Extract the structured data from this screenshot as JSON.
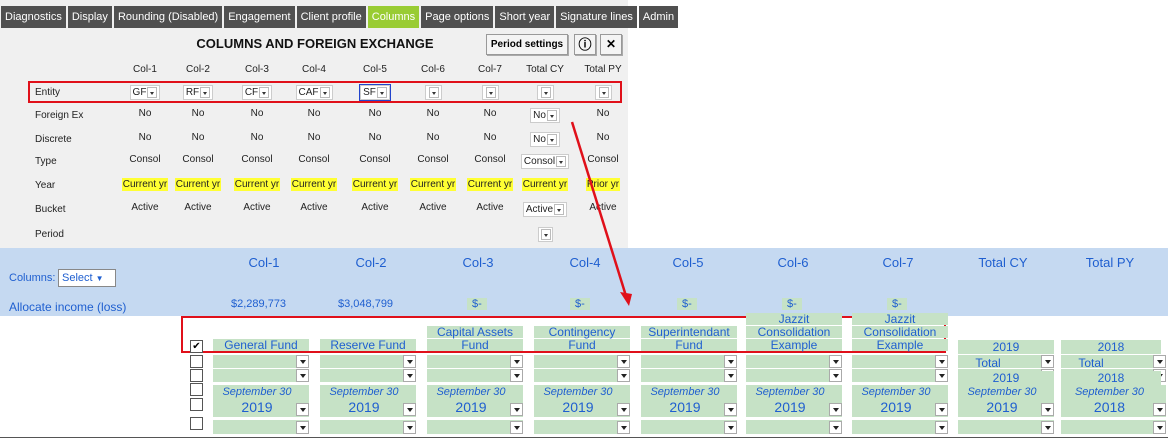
{
  "tabs": [
    "Diagnostics",
    "Display",
    "Rounding (Disabled)",
    "Engagement",
    "Client profile",
    "Columns",
    "Page options",
    "Short year",
    "Signature lines",
    "Admin"
  ],
  "active_tab": "Columns",
  "panel": {
    "title": "COLUMNS AND FOREIGN EXCHANGE",
    "period_settings": "Period settings",
    "info_glyph": "ⓘ",
    "close_glyph": "✕",
    "columns": [
      "Col-1",
      "Col-2",
      "Col-3",
      "Col-4",
      "Col-5",
      "Col-6",
      "Col-7",
      "Total CY",
      "Total PY"
    ],
    "rows": {
      "entity": {
        "label": "Entity",
        "values": [
          "GF",
          "RF",
          "CF",
          "CAF",
          "SF",
          "",
          "",
          "",
          ""
        ]
      },
      "foreign_ex": {
        "label": "Foreign Ex",
        "values": [
          "No",
          "No",
          "No",
          "No",
          "No",
          "No",
          "No",
          "No",
          "No"
        ]
      },
      "discrete": {
        "label": "Discrete",
        "values": [
          "No",
          "No",
          "No",
          "No",
          "No",
          "No",
          "No",
          "No",
          "No"
        ]
      },
      "type": {
        "label": "Type",
        "values": [
          "Consol",
          "Consol",
          "Consol",
          "Consol",
          "Consol",
          "Consol",
          "Consol",
          "Consol",
          "Consol"
        ]
      },
      "year": {
        "label": "Year",
        "values": [
          "Current yr",
          "Current yr",
          "Current yr",
          "Current yr",
          "Current yr",
          "Current yr",
          "Current yr",
          "Current yr",
          "Prior yr"
        ]
      },
      "bucket": {
        "label": "Bucket",
        "values": [
          "Active",
          "Active",
          "Active",
          "Active",
          "Active",
          "Active",
          "Active",
          "Active",
          "Active"
        ]
      },
      "period": {
        "label": "Period",
        "values": [
          "",
          "",
          "",
          "",
          "",
          "",
          "",
          "",
          ""
        ]
      }
    }
  },
  "band": {
    "columns_label": "Columns:",
    "select_label": "Select",
    "allocate_label": "Allocate income (loss)",
    "headers": [
      "Col-1",
      "Col-2",
      "Col-3",
      "Col-4",
      "Col-5",
      "Col-6",
      "Col-7",
      "Total CY",
      "Total PY"
    ],
    "amounts": [
      "$2,289,773",
      "$3,048,799",
      "$-",
      "$-",
      "$-",
      "$-",
      "$-"
    ]
  },
  "funds": [
    {
      "l1": "",
      "l2": "General Fund"
    },
    {
      "l1": "",
      "l2": "Reserve Fund"
    },
    {
      "l1": "Capital Assets",
      "l2": "Fund"
    },
    {
      "l1": "Contingency",
      "l2": "Fund"
    },
    {
      "l1": "Superintendant",
      "l2": "Fund"
    },
    {
      "l1": "Consolidation",
      "l2": "Example",
      "top": "Jazzit"
    },
    {
      "l1": "Consolidation",
      "l2": "Example",
      "top": "Jazzit"
    }
  ],
  "totals": {
    "cy": {
      "year": "2019",
      "total": "Total",
      "year2": "2019"
    },
    "py": {
      "year": "2018",
      "total": "Total",
      "year2": "2018"
    }
  },
  "period_date": "September 30",
  "period_years": [
    "2019",
    "2019",
    "2019",
    "2019",
    "2019",
    "2019",
    "2019",
    "2019",
    "2018"
  ],
  "colors": {
    "tab_bg": "#505050",
    "active_tab": "#99cc33",
    "highlight": "#e0101a",
    "band": "#c5d9f1",
    "green_chip": "#c6e2c6",
    "yellow": "#ffff33"
  }
}
